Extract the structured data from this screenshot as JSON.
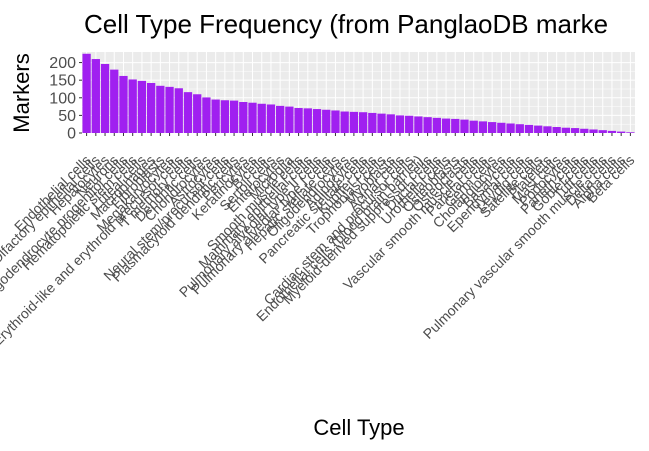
{
  "chart_data": {
    "type": "bar",
    "title": "Cell Type Frequency (from PanglaoDB marke",
    "xlabel": "Cell Type",
    "ylabel": "Markers",
    "ylim": [
      0,
      230
    ],
    "yticks": [
      0,
      50,
      100,
      150,
      200
    ],
    "grid": true,
    "legend": "none",
    "bar_color": "#a020f0",
    "categories": [
      "Endothelial cells",
      "Olfactory epithelial cells",
      "Hepatocytes",
      "Neurons",
      "Oligodendrocyte progenitor cells",
      "Hematopoietic stem cells",
      "Luteal cells",
      "Macrophages",
      "Fibroblasts",
      "Megakaryocytes",
      "Erythroid-like and erythroid precursor cells",
      "T memory cells",
      "Dendritic cells",
      "Chondrocytes",
      "Astrocytes",
      "Neural stem/precursor cells",
      "Plasmacytoid dendritic cells",
      "Pericytes",
      "Keratinocytes",
      "B cells",
      "Sertoli cells",
      "Enterocytes",
      "Microglia",
      "Smooth muscle cells",
      "Mammary epithelial cells",
      "Pulmonary alveolar type II cells",
      "Pulmonary alveolar type I cells",
      "Hepatic stellate cells",
      "Oligodendrocytes",
      "Adipocytes",
      "Pancreatic stellate cells",
      "Kupffer cells",
      "Trophoblast cells",
      "Myoblasts",
      "Acinar cells",
      "Cardiac stem and precursor cells",
      "Endothelial cells (blood brain barrier)",
      "Myeloid-derived suppressor cells",
      "Ductal cells",
      "Urothelial cells",
      "Osteoblasts",
      "Osteoclasts",
      "Vascular smooth muscle cells",
      "Parietal cells",
      "Germ cells",
      "Cholangiocytes",
      "Basal cells",
      "Ependymal cells",
      "Leydig cells",
      "Satellite cells",
      "Platelets",
      "Mast cells",
      "Podocytes",
      "Paneth cells",
      "Goblet cells",
      "Tuft cells",
      "Pulmonary vascular smooth muscle cells",
      "Delta cells",
      "Alpha cells",
      "Beta cells"
    ],
    "values": [
      225,
      210,
      196,
      180,
      162,
      152,
      148,
      142,
      134,
      131,
      127,
      116,
      110,
      101,
      95,
      93,
      92,
      88,
      86,
      83,
      81,
      77,
      75,
      71,
      70,
      68,
      66,
      64,
      61,
      60,
      59,
      57,
      55,
      53,
      50,
      49,
      47,
      45,
      43,
      41,
      40,
      38,
      35,
      33,
      31,
      29,
      27,
      25,
      23,
      21,
      19,
      17,
      15,
      14,
      12,
      10,
      8,
      6,
      4,
      2
    ]
  }
}
